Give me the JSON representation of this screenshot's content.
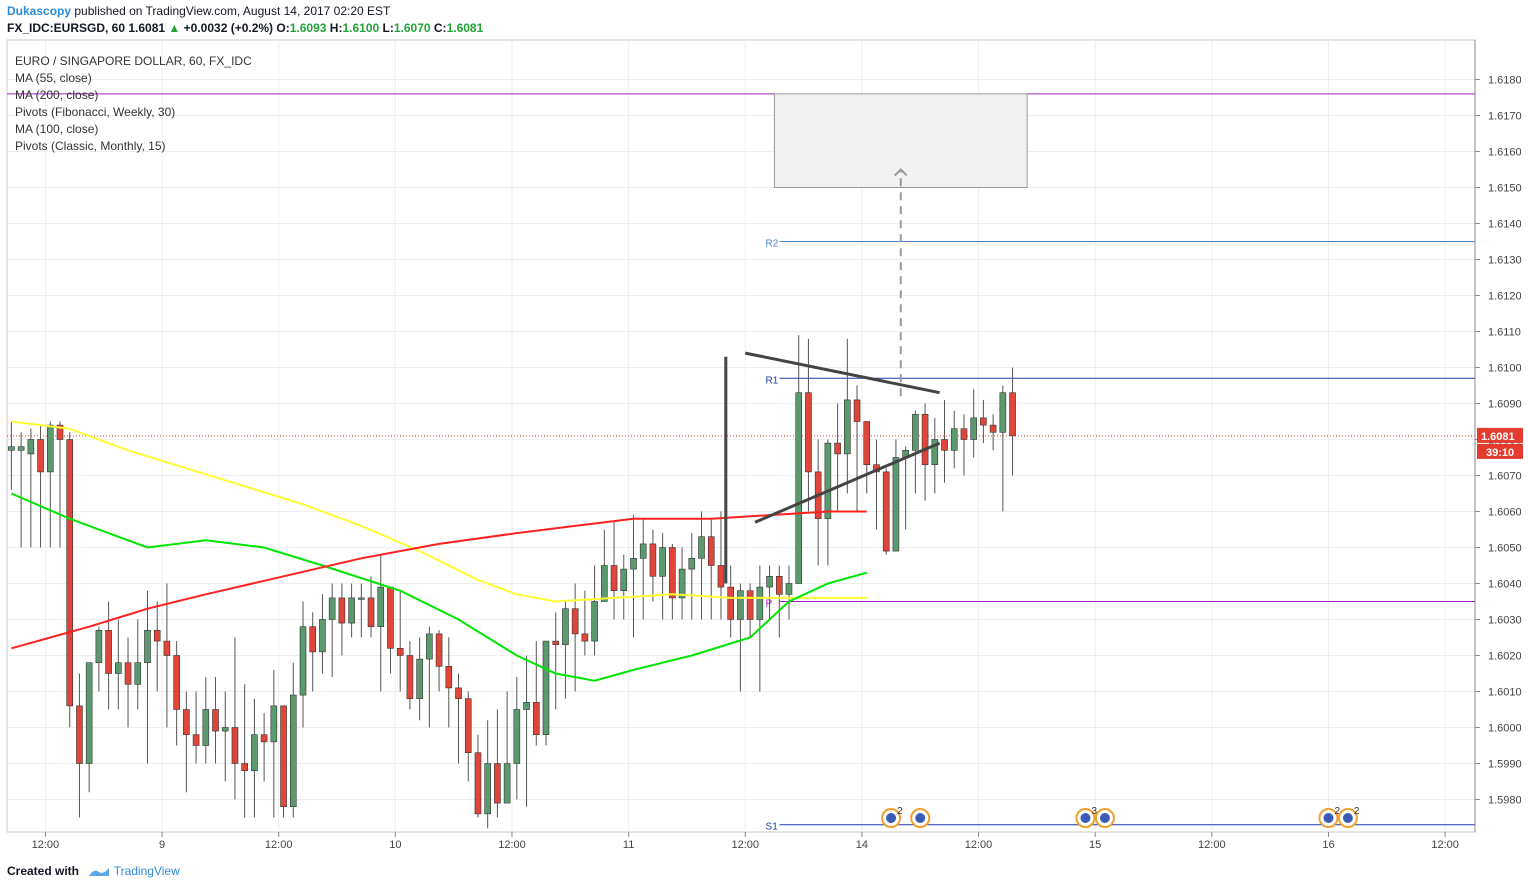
{
  "header": {
    "brand": "Dukascopy",
    "published": "published on TradingView.com, August 14, 2017 02:20 EST"
  },
  "ohlc": {
    "symbol": "FX_IDC:EURSGD, 60",
    "last": "1.6081",
    "change": "+0.0032 (+0.2%)",
    "o_label": "O:",
    "o": "1.6093",
    "h_label": "H:",
    "h": "1.6100",
    "l_label": "L:",
    "l": "1.6070",
    "c_label": "C:",
    "c": "1.6081"
  },
  "legend": [
    "EURO / SINGAPORE DOLLAR, 60, FX_IDC",
    "MA (55, close)",
    "MA (200, close)",
    "Pivots (Fibonacci, Weekly, 30)",
    "MA (100, close)",
    "Pivots (Classic, Monthly, 15)"
  ],
  "footer": {
    "created": "Created with",
    "tv": "TradingView"
  },
  "colors": {
    "up": "#5b9a6f",
    "down": "#e0453a",
    "ma55": "#00e600",
    "ma200": "#ff2020",
    "ma100": "#ffff33",
    "pivot_p": "#a020c0",
    "pivot_r": "#1e3ca8",
    "pivot_r2": "#4a86c8"
  },
  "chart_data": {
    "type": "candlestick",
    "y_ticks": [
      1.618,
      1.617,
      1.616,
      1.615,
      1.614,
      1.613,
      1.612,
      1.611,
      1.61,
      1.609,
      1.608,
      1.607,
      1.606,
      1.605,
      1.604,
      1.603,
      1.602,
      1.601,
      1.6,
      1.599,
      1.598
    ],
    "x_ticks": [
      {
        "label": "12:00",
        "i": 3.5
      },
      {
        "label": "9",
        "i": 15.5
      },
      {
        "label": "12:00",
        "i": 27.5
      },
      {
        "label": "10",
        "i": 39.5
      },
      {
        "label": "12:00",
        "i": 51.5
      },
      {
        "label": "11",
        "i": 63.5
      },
      {
        "label": "12:00",
        "i": 75.5
      },
      {
        "label": "14",
        "i": 87.5
      },
      {
        "label": "12:00",
        "i": 99.5
      },
      {
        "label": "15",
        "i": 111.5
      },
      {
        "label": "12:00",
        "i": 123.5
      },
      {
        "label": "16",
        "i": 135.5
      },
      {
        "label": "12:00",
        "i": 147.5
      }
    ],
    "last_price": "1.6081",
    "countdown": "39:10",
    "candles": [
      [
        1.6077,
        1.6078,
        1.6085,
        1.6066
      ],
      [
        1.6077,
        1.6078,
        1.6082,
        1.605
      ],
      [
        1.6076,
        1.608,
        1.6083,
        1.605
      ],
      [
        1.608,
        1.6071,
        1.6084,
        1.605
      ],
      [
        1.6071,
        1.6084,
        1.6085,
        1.605
      ],
      [
        1.6084,
        1.608,
        1.6085,
        1.605
      ],
      [
        1.608,
        1.6006,
        1.6082,
        1.6
      ],
      [
        1.6006,
        1.599,
        1.6015,
        1.5975
      ],
      [
        1.599,
        1.6018,
        1.6018,
        1.5982
      ],
      [
        1.6018,
        1.6027,
        1.6028,
        1.601
      ],
      [
        1.6027,
        1.6015,
        1.6035,
        1.6005
      ],
      [
        1.6015,
        1.6018,
        1.603,
        1.6005
      ],
      [
        1.6018,
        1.6012,
        1.6025,
        1.6
      ],
      [
        1.6012,
        1.6018,
        1.603,
        1.6005
      ],
      [
        1.6018,
        1.6027,
        1.6038,
        1.599
      ],
      [
        1.6027,
        1.6024,
        1.6035,
        1.601
      ],
      [
        1.6024,
        1.602,
        1.604,
        1.6
      ],
      [
        1.602,
        1.6005,
        1.6024,
        1.5995
      ],
      [
        1.6005,
        1.5998,
        1.601,
        1.5982
      ],
      [
        1.5998,
        1.5995,
        1.601,
        1.599
      ],
      [
        1.5995,
        1.6005,
        1.6014,
        1.599
      ],
      [
        1.6005,
        1.5999,
        1.6014,
        1.599
      ],
      [
        1.5999,
        1.6,
        1.601,
        1.5985
      ],
      [
        1.6,
        1.599,
        1.6025,
        1.598
      ],
      [
        1.599,
        1.5988,
        1.6012,
        1.5975
      ],
      [
        1.5988,
        1.5998,
        1.6008,
        1.5975
      ],
      [
        1.5998,
        1.5996,
        1.6004,
        1.5985
      ],
      [
        1.5996,
        1.6006,
        1.6016,
        1.5975
      ],
      [
        1.6006,
        1.5978,
        1.6006,
        1.5975
      ],
      [
        1.5978,
        1.6009,
        1.6018,
        1.5975
      ],
      [
        1.6009,
        1.6028,
        1.6035,
        1.6
      ],
      [
        1.6028,
        1.6021,
        1.6032,
        1.601
      ],
      [
        1.6021,
        1.603,
        1.6037,
        1.6015
      ],
      [
        1.603,
        1.6036,
        1.604,
        1.6014
      ],
      [
        1.6036,
        1.6029,
        1.604,
        1.602
      ],
      [
        1.6029,
        1.6036,
        1.604,
        1.6025
      ],
      [
        1.6036,
        1.6036,
        1.604,
        1.6025
      ],
      [
        1.6036,
        1.6028,
        1.6042,
        1.6025
      ],
      [
        1.6028,
        1.6039,
        1.6048,
        1.601
      ],
      [
        1.6039,
        1.6022,
        1.6039,
        1.6015
      ],
      [
        1.6022,
        1.602,
        1.6038,
        1.601
      ],
      [
        1.602,
        1.6008,
        1.6024,
        1.6005
      ],
      [
        1.6008,
        1.6019,
        1.6025,
        1.6002
      ],
      [
        1.6019,
        1.6026,
        1.6028,
        1.6
      ],
      [
        1.6026,
        1.6017,
        1.6027,
        1.601
      ],
      [
        1.6017,
        1.6011,
        1.6025,
        1.6
      ],
      [
        1.6011,
        1.6008,
        1.6015,
        1.599
      ],
      [
        1.6008,
        1.5993,
        1.601,
        1.5985
      ],
      [
        1.5993,
        1.5976,
        1.5998,
        1.5975
      ],
      [
        1.5976,
        1.599,
        1.6002,
        1.5972
      ],
      [
        1.599,
        1.5979,
        1.6005,
        1.5975
      ],
      [
        1.5979,
        1.599,
        1.601,
        1.598
      ],
      [
        1.599,
        1.6005,
        1.6014,
        1.598
      ],
      [
        1.6005,
        1.6007,
        1.602,
        1.5978
      ],
      [
        1.6007,
        1.5998,
        1.6024,
        1.5995
      ],
      [
        1.5998,
        1.6024,
        1.6024,
        1.5995
      ],
      [
        1.6024,
        1.6023,
        1.6032,
        1.6005
      ],
      [
        1.6023,
        1.6033,
        1.6035,
        1.6008
      ],
      [
        1.6033,
        1.6026,
        1.604,
        1.601
      ],
      [
        1.6026,
        1.6024,
        1.6038,
        1.602
      ],
      [
        1.6024,
        1.6035,
        1.6045,
        1.602
      ],
      [
        1.6035,
        1.6045,
        1.6055,
        1.6035
      ],
      [
        1.6045,
        1.6038,
        1.6057,
        1.603
      ],
      [
        1.6038,
        1.6044,
        1.6048,
        1.603
      ],
      [
        1.6044,
        1.6047,
        1.6059,
        1.6025
      ],
      [
        1.6047,
        1.6051,
        1.6058,
        1.603
      ],
      [
        1.6051,
        1.6042,
        1.6055,
        1.6035
      ],
      [
        1.6042,
        1.605,
        1.6054,
        1.603
      ],
      [
        1.605,
        1.6036,
        1.6051,
        1.603
      ],
      [
        1.6036,
        1.6044,
        1.605,
        1.603
      ],
      [
        1.6044,
        1.6047,
        1.6054,
        1.603
      ],
      [
        1.6047,
        1.6053,
        1.606,
        1.603
      ],
      [
        1.6053,
        1.6045,
        1.6058,
        1.603
      ],
      [
        1.6045,
        1.6039,
        1.606,
        1.603
      ],
      [
        1.6039,
        1.603,
        1.6045,
        1.6025
      ],
      [
        1.603,
        1.6038,
        1.604,
        1.601
      ],
      [
        1.6038,
        1.603,
        1.604,
        1.6025
      ],
      [
        1.603,
        1.6039,
        1.6045,
        1.601
      ],
      [
        1.6039,
        1.6042,
        1.6045,
        1.603
      ],
      [
        1.6042,
        1.6037,
        1.6045,
        1.6025
      ],
      [
        1.6037,
        1.604,
        1.6045,
        1.603
      ],
      [
        1.604,
        1.6093,
        1.6109,
        1.604
      ],
      [
        1.6093,
        1.6071,
        1.6108,
        1.606
      ],
      [
        1.6071,
        1.6058,
        1.608,
        1.6045
      ],
      [
        1.6058,
        1.6079,
        1.608,
        1.6045
      ],
      [
        1.6079,
        1.6076,
        1.609,
        1.606
      ],
      [
        1.6076,
        1.6091,
        1.6108,
        1.6065
      ],
      [
        1.6091,
        1.6085,
        1.6095,
        1.606
      ],
      [
        1.6085,
        1.6073,
        1.6082,
        1.6065
      ],
      [
        1.6073,
        1.6071,
        1.608,
        1.6055
      ],
      [
        1.6071,
        1.6049,
        1.6072,
        1.6048
      ],
      [
        1.6049,
        1.6075,
        1.608,
        1.606
      ],
      [
        1.6075,
        1.6077,
        1.6078,
        1.6055
      ],
      [
        1.6077,
        1.6087,
        1.6088,
        1.6065
      ],
      [
        1.6087,
        1.6073,
        1.609,
        1.6063
      ],
      [
        1.6073,
        1.608,
        1.6086,
        1.6065
      ],
      [
        1.608,
        1.6077,
        1.6091,
        1.6068
      ],
      [
        1.6077,
        1.6083,
        1.6088,
        1.6072
      ],
      [
        1.6083,
        1.608,
        1.6087,
        1.607
      ],
      [
        1.608,
        1.6086,
        1.6094,
        1.6075
      ],
      [
        1.6086,
        1.6084,
        1.6091,
        1.6079
      ],
      [
        1.6084,
        1.6082,
        1.6087,
        1.6077
      ],
      [
        1.6082,
        1.6093,
        1.6095,
        1.606
      ],
      [
        1.6093,
        1.6081,
        1.61,
        1.607
      ]
    ],
    "ma55": [
      [
        0,
        1.6065
      ],
      [
        6,
        1.6058
      ],
      [
        14,
        1.605
      ],
      [
        20,
        1.6052
      ],
      [
        26,
        1.605
      ],
      [
        32,
        1.6045
      ],
      [
        40,
        1.6038
      ],
      [
        46,
        1.603
      ],
      [
        52,
        1.602
      ],
      [
        56,
        1.6015
      ],
      [
        60,
        1.6013
      ],
      [
        64,
        1.6016
      ],
      [
        70,
        1.602
      ],
      [
        76,
        1.6025
      ],
      [
        80,
        1.6035
      ],
      [
        84,
        1.604
      ],
      [
        88,
        1.6043
      ]
    ],
    "ma200": [
      [
        0,
        1.6022
      ],
      [
        8,
        1.6028
      ],
      [
        14,
        1.6033
      ],
      [
        20,
        1.6037
      ],
      [
        28,
        1.6042
      ],
      [
        36,
        1.6047
      ],
      [
        44,
        1.6051
      ],
      [
        52,
        1.6054
      ],
      [
        58,
        1.6056
      ],
      [
        64,
        1.6058
      ],
      [
        72,
        1.6058
      ],
      [
        78,
        1.6059
      ],
      [
        84,
        1.606
      ],
      [
        88,
        1.606
      ]
    ],
    "ma100": [
      [
        0,
        1.6085
      ],
      [
        6,
        1.6083
      ],
      [
        12,
        1.6077
      ],
      [
        18,
        1.6072
      ],
      [
        24,
        1.6067
      ],
      [
        30,
        1.6062
      ],
      [
        36,
        1.6056
      ],
      [
        42,
        1.6049
      ],
      [
        48,
        1.6041
      ],
      [
        52,
        1.6037
      ],
      [
        56,
        1.6035
      ],
      [
        62,
        1.6036
      ],
      [
        68,
        1.6037
      ],
      [
        74,
        1.6036
      ],
      [
        80,
        1.6036
      ],
      [
        88,
        1.6036
      ]
    ],
    "pivots": [
      {
        "label": "R2",
        "value": 1.6135,
        "from": 78,
        "color": "#4a86c8"
      },
      {
        "label": "R1",
        "value": 1.6097,
        "from": 78,
        "color": "#1e3ca8"
      },
      {
        "label": "P",
        "value": 1.6035,
        "from": 78,
        "color": "#a020c0"
      },
      {
        "label": "S1",
        "value": 1.5973,
        "from": 78,
        "color": "#1e3ca8"
      }
    ],
    "top_pivot": 1.6176,
    "target_box": {
      "i_from": 78.5,
      "i_to": 104.5,
      "y_from": 1.615,
      "y_to": 1.6176
    },
    "trendlines": [
      [
        [
          73.5,
          1.6103
        ],
        [
          73.5,
          1.604
        ]
      ],
      [
        [
          75.5,
          1.6104
        ],
        [
          95.5,
          1.6093
        ]
      ],
      [
        [
          76.5,
          1.6057
        ],
        [
          95.5,
          1.6079
        ]
      ]
    ],
    "projection": {
      "i": 91.5,
      "y_from": 1.6092,
      "y_to": 1.6155
    },
    "events": [
      {
        "i": 90.5,
        "label": "2"
      },
      {
        "i": 93.5,
        "label": ""
      },
      {
        "i": 110.5,
        "label": "3"
      },
      {
        "i": 112.5,
        "label": ""
      },
      {
        "i": 135.5,
        "label": "2"
      },
      {
        "i": 137.5,
        "label": "2"
      }
    ]
  }
}
